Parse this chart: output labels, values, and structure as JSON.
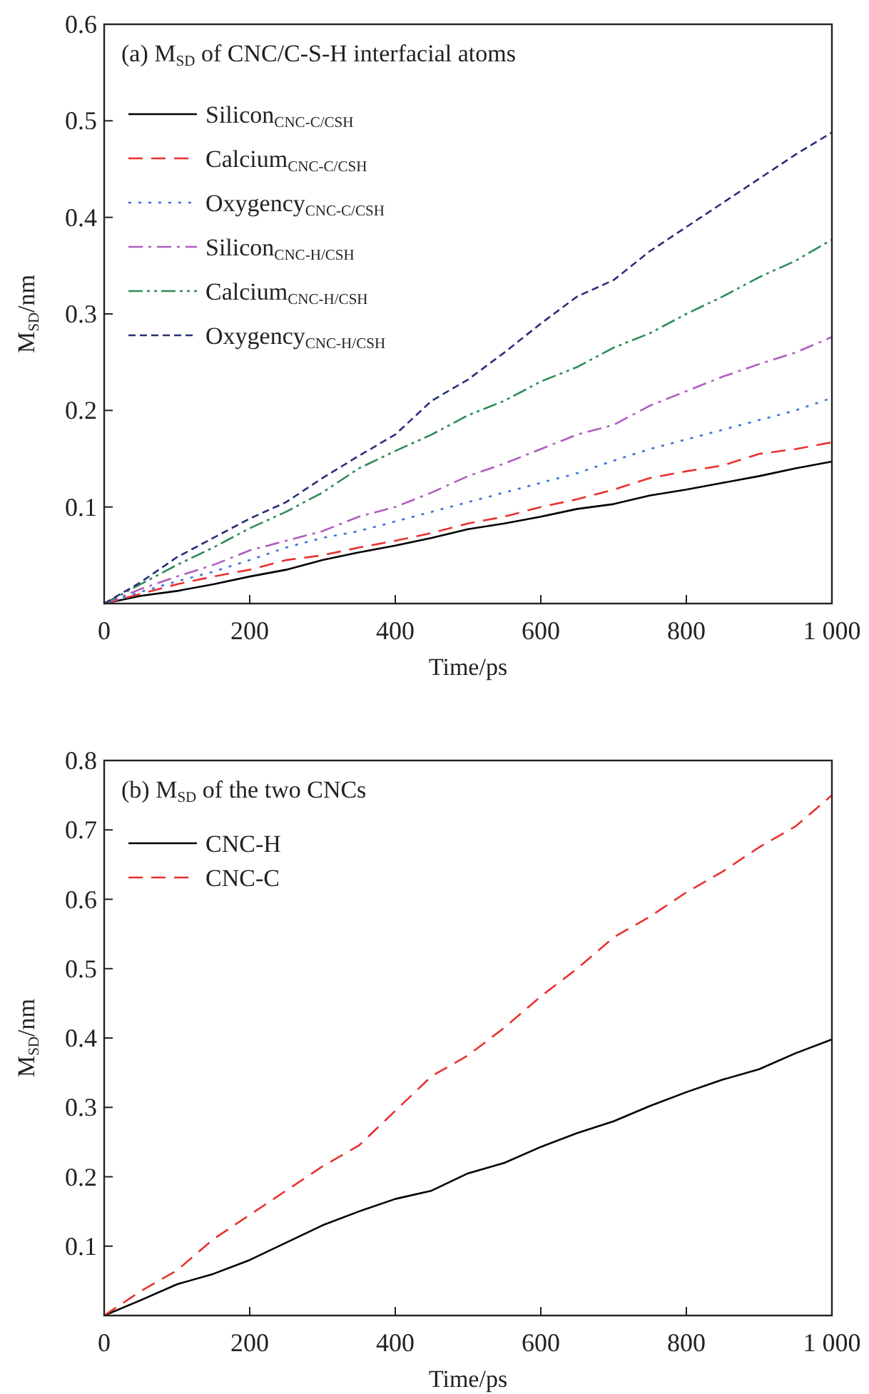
{
  "chart_data": [
    {
      "type": "line",
      "title": "(a) M$_{SD}$ of CNC/C-S-H interfacial atoms",
      "xlabel": "Time/ps",
      "ylabel": "M$_{SD}$/nm",
      "xlim": [
        0,
        1000
      ],
      "ylim": [
        0,
        0.6
      ],
      "xticks": [
        0,
        200,
        400,
        600,
        800,
        {
          "value": 1000,
          "label": "1 000"
        }
      ],
      "yticks": [
        {
          "value": 0,
          "label": null
        },
        0.1,
        0.2,
        0.3,
        0.4,
        0.5,
        0.6
      ],
      "legend": "top left",
      "grid": false,
      "marker": "none",
      "x": [
        0,
        50,
        100,
        150,
        200,
        250,
        300,
        350,
        400,
        450,
        500,
        550,
        600,
        650,
        700,
        750,
        800,
        850,
        900,
        950,
        1000
      ],
      "series": [
        {
          "name": "Silicon$_{CNC-C/CSH}$",
          "color": "#000000",
          "line_style": "solid",
          "values": [
            0,
            0.008,
            0.013,
            0.02,
            0.028,
            0.035,
            0.045,
            0.053,
            0.06,
            0.068,
            0.077,
            0.083,
            0.09,
            0.098,
            0.103,
            0.112,
            0.118,
            0.125,
            0.132,
            0.14,
            0.147
          ]
        },
        {
          "name": "Calcium$_{CNC-C/CSH}$",
          "color": "#e8312e",
          "line_style": "dashed",
          "values": [
            0,
            0.01,
            0.02,
            0.028,
            0.035,
            0.045,
            0.05,
            0.058,
            0.065,
            0.073,
            0.083,
            0.09,
            0.1,
            0.108,
            0.118,
            0.13,
            0.137,
            0.143,
            0.155,
            0.16,
            0.167
          ]
        },
        {
          "name": "Oxygency$_{CNC-C/CSH}$",
          "color": "#3a6fd8",
          "line_style": "dotted",
          "values": [
            0,
            0.012,
            0.023,
            0.033,
            0.045,
            0.058,
            0.068,
            0.075,
            0.085,
            0.095,
            0.105,
            0.115,
            0.125,
            0.135,
            0.148,
            0.16,
            0.17,
            0.18,
            0.19,
            0.2,
            0.213
          ]
        },
        {
          "name": "Silicon$_{CNC-H/CSH}$",
          "color": "#b05cc0",
          "line_style": "dashdot",
          "values": [
            0,
            0.015,
            0.028,
            0.04,
            0.055,
            0.065,
            0.075,
            0.09,
            0.1,
            0.115,
            0.132,
            0.145,
            0.16,
            0.175,
            0.185,
            0.205,
            0.22,
            0.235,
            0.248,
            0.26,
            0.276
          ]
        },
        {
          "name": "Calcium$_{CNC-H/CSH}$",
          "color": "#2e8b57",
          "line_style": "dashdotdot",
          "values": [
            0,
            0.02,
            0.04,
            0.058,
            0.078,
            0.095,
            0.115,
            0.14,
            0.158,
            0.175,
            0.195,
            0.21,
            0.23,
            0.245,
            0.265,
            0.28,
            0.3,
            0.318,
            0.338,
            0.355,
            0.377
          ]
        },
        {
          "name": "Oxygency$_{CNC-H/CSH}$",
          "color": "#2a2f7a",
          "line_style": "shortdash",
          "values": [
            0,
            0.022,
            0.048,
            0.068,
            0.088,
            0.105,
            0.13,
            0.153,
            0.175,
            0.21,
            0.232,
            0.26,
            0.29,
            0.318,
            0.335,
            0.365,
            0.39,
            0.415,
            0.44,
            0.465,
            0.488
          ]
        }
      ]
    },
    {
      "type": "line",
      "title": "(b) M$_{SD}$ of the two CNCs",
      "xlabel": "Time/ps",
      "ylabel": "M$_{SD}$/nm",
      "xlim": [
        0,
        1000
      ],
      "ylim": [
        0,
        0.8
      ],
      "xticks": [
        0,
        200,
        400,
        600,
        800,
        {
          "value": 1000,
          "label": "1 000"
        }
      ],
      "yticks": [
        {
          "value": 0,
          "label": null
        },
        0.1,
        0.2,
        0.3,
        0.4,
        0.5,
        0.6,
        0.7,
        0.8
      ],
      "legend": "top left",
      "grid": false,
      "marker": "none",
      "x": [
        0,
        50,
        100,
        150,
        200,
        250,
        300,
        350,
        400,
        450,
        500,
        550,
        600,
        650,
        700,
        750,
        800,
        850,
        900,
        950,
        1000
      ],
      "series": [
        {
          "name": "CNC-H",
          "color": "#000000",
          "line_style": "solid",
          "values": [
            0,
            0.022,
            0.045,
            0.06,
            0.08,
            0.105,
            0.13,
            0.15,
            0.168,
            0.18,
            0.205,
            0.22,
            0.243,
            0.263,
            0.28,
            0.302,
            0.322,
            0.34,
            0.355,
            0.378,
            0.398
          ]
        },
        {
          "name": "CNC-C",
          "color": "#e8312e",
          "line_style": "dashed",
          "values": [
            0,
            0.035,
            0.065,
            0.11,
            0.145,
            0.18,
            0.215,
            0.245,
            0.295,
            0.345,
            0.375,
            0.415,
            0.46,
            0.5,
            0.545,
            0.575,
            0.61,
            0.64,
            0.675,
            0.705,
            0.75
          ]
        }
      ]
    }
  ]
}
